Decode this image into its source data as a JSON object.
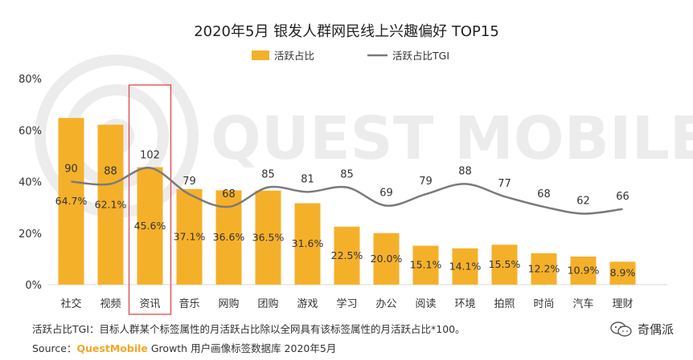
{
  "chart_data": {
    "type": "bar",
    "title": "2020年5月 银发人群网民线上兴趣偏好 TOP15",
    "categories": [
      "社交",
      "视频",
      "资讯",
      "音乐",
      "网购",
      "团购",
      "游戏",
      "学习",
      "办公",
      "阅读",
      "环境",
      "拍照",
      "时尚",
      "汽车",
      "理财"
    ],
    "series": [
      {
        "name": "活跃占比",
        "kind": "bar",
        "color": "#f5b02a",
        "values": [
          64.7,
          62.1,
          45.6,
          37.1,
          36.6,
          36.5,
          31.6,
          22.5,
          20.0,
          15.1,
          14.1,
          15.5,
          12.2,
          10.9,
          8.9
        ],
        "labels": [
          "64.7%",
          "62.1%",
          "45.6%",
          "37.1%",
          "36.6%",
          "36.5%",
          "31.6%",
          "22.5%",
          "20.0%",
          "15.1%",
          "14.1%",
          "15.5%",
          "12.2%",
          "10.9%",
          "8.9%"
        ]
      },
      {
        "name": "活跃占比TGI",
        "kind": "line",
        "color": "#7a7a7a",
        "values": [
          90,
          88,
          102,
          79,
          68,
          85,
          81,
          85,
          69,
          79,
          88,
          77,
          68,
          62,
          66
        ],
        "labels": [
          "90",
          "88",
          "102",
          "79",
          "68",
          "85",
          "81",
          "85",
          "69",
          "79",
          "88",
          "77",
          "68",
          "62",
          "66"
        ]
      }
    ],
    "ylim": [
      0,
      80
    ],
    "yticks": [
      "0%",
      "20%",
      "40%",
      "60%",
      "80%"
    ],
    "highlight_category": "资讯",
    "highlight_color": "#e0454f",
    "legend_position": "top-center",
    "grid": false,
    "footnote": "活跃占比TGI：目标人群某个标签属性的月活跃占比除以全网具有该标签属性的月活跃占比*100。",
    "source": {
      "prefix": "Source：",
      "brand": "QuestMobile",
      "suffix": " Growth 用户画像标签数据库 2020年5月"
    },
    "watermark": "QUEST MOBILE",
    "brand_tag": "奇偶派"
  }
}
